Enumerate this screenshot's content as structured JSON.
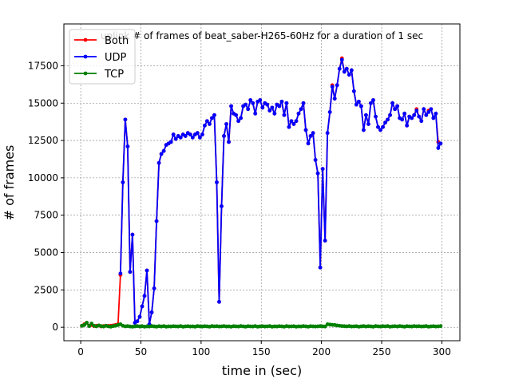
{
  "chart_data": {
    "type": "line",
    "title": "uplink # of frames of beat_saber-H265-60Hz for a duration of 1 sec",
    "x_label": "time in (sec)",
    "y_label": "# of frames",
    "x": [
      1,
      3,
      5,
      7,
      9,
      11,
      13,
      15,
      17,
      19,
      21,
      23,
      25,
      27,
      29,
      31,
      33,
      35,
      37,
      39,
      41,
      43,
      45,
      47,
      49,
      51,
      53,
      55,
      57,
      59,
      61,
      63,
      65,
      67,
      69,
      71,
      73,
      75,
      77,
      79,
      81,
      83,
      85,
      87,
      89,
      91,
      93,
      95,
      97,
      99,
      101,
      103,
      105,
      107,
      109,
      111,
      113,
      115,
      117,
      119,
      121,
      123,
      125,
      127,
      129,
      131,
      133,
      135,
      137,
      139,
      141,
      143,
      145,
      147,
      149,
      151,
      153,
      155,
      157,
      159,
      161,
      163,
      165,
      167,
      169,
      171,
      173,
      175,
      177,
      179,
      181,
      183,
      185,
      187,
      189,
      191,
      193,
      195,
      197,
      199,
      201,
      203,
      205,
      207,
      209,
      211,
      213,
      215,
      217,
      219,
      221,
      223,
      225,
      227,
      229,
      231,
      233,
      235,
      237,
      239,
      241,
      243,
      245,
      247,
      249,
      251,
      253,
      255,
      257,
      259,
      261,
      263,
      265,
      267,
      269,
      271,
      273,
      275,
      277,
      279,
      281,
      283,
      285,
      287,
      289,
      291,
      293,
      295,
      297,
      299
    ],
    "series": [
      {
        "name": "Both",
        "color": "#ff0000",
        "values": [
          100,
          200,
          300,
          100,
          150,
          80,
          100,
          120,
          60,
          80,
          100,
          90,
          100,
          120,
          150,
          200,
          3500,
          9700,
          13900,
          12100,
          3700,
          6200,
          300,
          400,
          700,
          1400,
          2100,
          3800,
          200,
          1000,
          2600,
          7100,
          11000,
          11600,
          11800,
          12200,
          12300,
          12400,
          12900,
          12600,
          12800,
          12700,
          12900,
          12800,
          13000,
          12900,
          12700,
          12900,
          13000,
          12700,
          12900,
          13500,
          13800,
          13600,
          14000,
          14200,
          9700,
          1700,
          8100,
          12800,
          13600,
          12400,
          14800,
          14300,
          14200,
          13800,
          14000,
          14800,
          14900,
          14600,
          15200,
          15000,
          14300,
          15100,
          15200,
          14700,
          15000,
          14900,
          14500,
          14700,
          14300,
          14900,
          14800,
          15100,
          14200,
          15000,
          13400,
          13800,
          13600,
          13800,
          14300,
          14600,
          15000,
          13200,
          12300,
          12800,
          13000,
          11200,
          10300,
          4000,
          10600,
          5800,
          13000,
          14400,
          16200,
          15300,
          16200,
          17300,
          18000,
          17100,
          17300,
          16900,
          17200,
          15800,
          14900,
          15100,
          14800,
          13200,
          14200,
          13600,
          15000,
          15200,
          14100,
          13400,
          13200,
          13400,
          13700,
          13900,
          14200,
          15000,
          14600,
          14800,
          14000,
          13900,
          14300,
          13500,
          14100,
          14000,
          14200,
          14600,
          14100,
          13800,
          14600,
          14200,
          14500,
          14600,
          14000,
          14300,
          12400,
          12300
        ]
      },
      {
        "name": "UDP",
        "color": "#0000ff",
        "values": [
          null,
          null,
          null,
          null,
          null,
          null,
          null,
          null,
          null,
          null,
          null,
          null,
          null,
          null,
          null,
          null,
          3600,
          9700,
          13900,
          12100,
          3700,
          6200,
          300,
          400,
          700,
          1400,
          2100,
          3800,
          200,
          1000,
          2600,
          7100,
          11000,
          11600,
          11800,
          12200,
          12300,
          12400,
          12900,
          12600,
          12800,
          12700,
          12900,
          12800,
          13000,
          12900,
          12700,
          12900,
          13000,
          12700,
          12900,
          13500,
          13800,
          13600,
          14000,
          14200,
          9700,
          1700,
          8100,
          12800,
          13600,
          12400,
          14800,
          14300,
          14200,
          13800,
          14000,
          14800,
          14900,
          14600,
          15200,
          15000,
          14300,
          15100,
          15200,
          14700,
          15000,
          14900,
          14500,
          14700,
          14300,
          14900,
          14800,
          15100,
          14200,
          15000,
          13400,
          13800,
          13600,
          13800,
          14300,
          14600,
          15000,
          13200,
          12300,
          12800,
          13000,
          11200,
          10300,
          4000,
          10600,
          5800,
          13000,
          14400,
          16100,
          15300,
          16200,
          17300,
          17900,
          17100,
          17300,
          16900,
          17200,
          15800,
          14900,
          15100,
          14800,
          13200,
          14200,
          13600,
          15000,
          15200,
          14100,
          13400,
          13200,
          13400,
          13700,
          13900,
          14200,
          15000,
          14600,
          14800,
          14000,
          13900,
          14300,
          13500,
          14100,
          14000,
          14200,
          14500,
          14100,
          13800,
          14600,
          14200,
          14400,
          14600,
          14000,
          14300,
          12000,
          12300
        ]
      },
      {
        "name": "TCP",
        "color": "#008000",
        "values": [
          100,
          150,
          300,
          80,
          250,
          100,
          60,
          120,
          80,
          50,
          100,
          60,
          40,
          80,
          100,
          150,
          200,
          100,
          60,
          80,
          50,
          40,
          60,
          80,
          50,
          70,
          40,
          60,
          50,
          80,
          60,
          40,
          70,
          50,
          80,
          40,
          60,
          50,
          70,
          60,
          50,
          80,
          40,
          60,
          70,
          50,
          60,
          40,
          80,
          60,
          50,
          70,
          60,
          40,
          80,
          60,
          70,
          50,
          60,
          80,
          50,
          60,
          40,
          70,
          60,
          50,
          80,
          60,
          40,
          70,
          60,
          50,
          80,
          40,
          60,
          70,
          50,
          60,
          80,
          40,
          60,
          50,
          70,
          60,
          40,
          80,
          50,
          60,
          70,
          40,
          60,
          50,
          80,
          60,
          40,
          70,
          60,
          50,
          60,
          80,
          60,
          50,
          200,
          180,
          160,
          150,
          120,
          100,
          80,
          70,
          60,
          80,
          50,
          60,
          70,
          40,
          60,
          80,
          50,
          70,
          60,
          40,
          80,
          60,
          50,
          70,
          60,
          80,
          40,
          60,
          70,
          50,
          80,
          60,
          40,
          70,
          60,
          50,
          80,
          60,
          70,
          50,
          60,
          80,
          40,
          60,
          70,
          50,
          60,
          80
        ]
      }
    ],
    "xlim": [
      -14,
      315
    ],
    "ylim": [
      -900,
      20300
    ],
    "xticks": [
      0,
      50,
      100,
      150,
      200,
      250,
      300
    ],
    "yticks": [
      0,
      2500,
      5000,
      7500,
      10000,
      12500,
      15000,
      17500
    ],
    "grid": true,
    "legend": "upper left"
  }
}
